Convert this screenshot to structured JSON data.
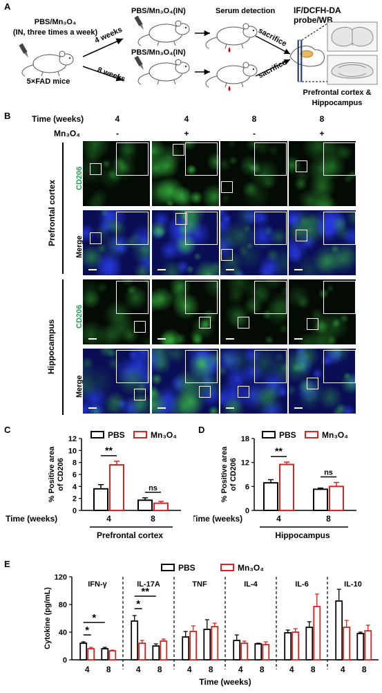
{
  "panelA": {
    "label": "A",
    "treatment": "PBS/Mn₃O₄",
    "treatment_note": "(IN, three times a week)",
    "mice": "5×FAD mice",
    "arm4_title": "PBS/Mn₃O₄(IN)",
    "arm8_title": "PBS/Mn₃O₄(IN)",
    "arm4_time": "4 weeks",
    "arm8_time": "8 weeks",
    "serum": "Serum detection",
    "sacrifice1": "sacrifice",
    "sacrifice2": "sacrifice",
    "probe": "IF/DCFH-DA probe/WB",
    "region1": "Prefrontal cortex &",
    "region2": "Hippocampus"
  },
  "panelB": {
    "label": "B",
    "time_header": "Time (weeks)",
    "mn_header": "Mn₃O₄",
    "columns": [
      {
        "time": "4",
        "mn": "-"
      },
      {
        "time": "4",
        "mn": "+"
      },
      {
        "time": "8",
        "mn": "-"
      },
      {
        "time": "8",
        "mn": "+"
      }
    ],
    "region_pfc": "Prefrontal cortex",
    "region_hip": "Hippocampus",
    "row_cd206": "CD206",
    "row_merge": "Merge",
    "cd206_color": "#19a34a"
  },
  "panelC": {
    "label": "C",
    "chart_data": {
      "type": "bar",
      "ylabel": "% Positive area of CD206",
      "ylim": [
        0,
        12
      ],
      "yticks": [
        0,
        2,
        4,
        6,
        8,
        10,
        12
      ],
      "xlabel": "Time (weeks)",
      "categories": [
        "4",
        "8"
      ],
      "group_label": "Prefrontal cortex",
      "series": [
        {
          "name": "PBS",
          "values": [
            3.6,
            1.7
          ],
          "errors": [
            0.7,
            0.4
          ],
          "color": "#000000"
        },
        {
          "name": "Mn₃O₄",
          "values": [
            7.6,
            1.2
          ],
          "errors": [
            0.6,
            0.3
          ],
          "color": "#e0201b"
        }
      ],
      "significance": [
        "**",
        "ns"
      ]
    }
  },
  "panelD": {
    "label": "D",
    "chart_data": {
      "type": "bar",
      "ylabel": "% Positive area of CD206",
      "ylim": [
        0,
        18
      ],
      "yticks": [
        0,
        6,
        12,
        18
      ],
      "xlabel": "Time (weeks)",
      "categories": [
        "4",
        "8"
      ],
      "group_label": "Hippocampus",
      "series": [
        {
          "name": "PBS",
          "values": [
            6.9,
            5.3
          ],
          "errors": [
            0.8,
            0.3
          ],
          "color": "#000000"
        },
        {
          "name": "Mn₃O₄",
          "values": [
            11.5,
            6.0
          ],
          "errors": [
            0.6,
            1.0
          ],
          "color": "#e0201b"
        }
      ],
      "significance": [
        "**",
        "ns"
      ]
    }
  },
  "panelE": {
    "label": "E",
    "chart_data": {
      "type": "bar",
      "ylabel": "Cytokine (pg/mL)",
      "ylim": [
        0,
        120
      ],
      "yticks": [
        0,
        40,
        80,
        120
      ],
      "xlabel": "Time (weeks)",
      "series_names": [
        "PBS",
        "Mn₃O₄"
      ],
      "colors": [
        "#000000",
        "#e0201b"
      ],
      "groups": [
        {
          "name": "IFN-γ",
          "ticks": [
            "4",
            "8"
          ],
          "pbs": [
            24,
            16
          ],
          "pbs_err": [
            2,
            2
          ],
          "mn": [
            16,
            13
          ],
          "mn_err": [
            2,
            1
          ],
          "sig": [
            "*",
            "*"
          ]
        },
        {
          "name": "IL-17A",
          "ticks": [
            "4",
            "8"
          ],
          "pbs": [
            56,
            20
          ],
          "pbs_err": [
            8,
            3
          ],
          "mn": [
            24,
            27
          ],
          "mn_err": [
            4,
            3
          ],
          "sig": [
            "*",
            "**"
          ]
        },
        {
          "name": "TNF",
          "ticks": [
            "4",
            "8"
          ],
          "pbs": [
            33,
            44
          ],
          "pbs_err": [
            8,
            14
          ],
          "mn": [
            41,
            48
          ],
          "mn_err": [
            8,
            5
          ],
          "sig": []
        },
        {
          "name": "IL-4",
          "ticks": [
            "4",
            "8"
          ],
          "pbs": [
            28,
            23
          ],
          "pbs_err": [
            8,
            1
          ],
          "mn": [
            24,
            22
          ],
          "mn_err": [
            3,
            4
          ],
          "sig": []
        },
        {
          "name": "IL-6",
          "ticks": [
            "4",
            "8"
          ],
          "pbs": [
            39,
            47
          ],
          "pbs_err": [
            4,
            8
          ],
          "mn": [
            40,
            77
          ],
          "mn_err": [
            5,
            18
          ],
          "sig": []
        },
        {
          "name": "IL-10",
          "ticks": [
            "4",
            "8"
          ],
          "pbs": [
            85,
            38
          ],
          "pbs_err": [
            17,
            2
          ],
          "mn": [
            47,
            42
          ],
          "mn_err": [
            10,
            8
          ],
          "sig": []
        }
      ]
    }
  }
}
